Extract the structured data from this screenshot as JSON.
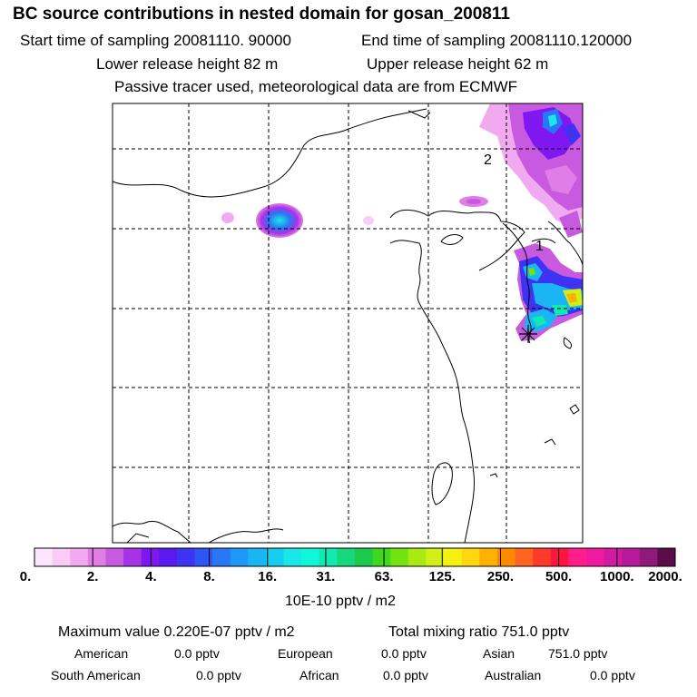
{
  "header": {
    "title": "BC  source contributions in nested domain for gosan_200811",
    "start_label": "Start time of sampling 20081110. 90000",
    "end_label": "End time of sampling 20081110.120000",
    "lower_label": "Lower release height   82 m",
    "upper_label": "Upper release height   62 m",
    "note": "Passive tracer used, meteorological data are from ECMWF"
  },
  "map": {
    "markers": [
      {
        "id": "marker-1",
        "label": "1"
      },
      {
        "id": "marker-2",
        "label": "2"
      }
    ],
    "colors": {
      "land_outline": "#000000",
      "grid_line": "#000000",
      "background": "#ffffff"
    }
  },
  "colorbar": {
    "tick_labels": [
      "0.",
      "2.",
      "4.",
      "8.",
      "16.",
      "31.",
      "63.",
      "125.",
      "250.",
      "500.",
      "1000.",
      "2000."
    ],
    "colors": [
      "#fde6fd",
      "#f9ccf8",
      "#f1aaf0",
      "#e07de6",
      "#c85ae0",
      "#a733e6",
      "#7f18f0",
      "#5a1aef",
      "#3e33f2",
      "#2f55f4",
      "#2a77f5",
      "#1e97f5",
      "#19b6f3",
      "#16cfee",
      "#1ae8e8",
      "#10f6d8",
      "#10eaae",
      "#16d67e",
      "#1dca4d",
      "#3fd81a",
      "#73e30f",
      "#a8ea12",
      "#d3f016",
      "#f6f010",
      "#ffd710",
      "#ffb000",
      "#ff8a00",
      "#ff6420",
      "#ff3a2a",
      "#ff1540",
      "#ff1e8c",
      "#f01aa0",
      "#d21aa2",
      "#b41a9a",
      "#901a7c",
      "#5c0c48"
    ],
    "unit": "10E-10 pptv / m2"
  },
  "stats": {
    "maximum": "Maximum value  0.220E-07 pptv / m2",
    "total": "Total mixing ratio      751.0 pptv",
    "regions": [
      {
        "name": "American",
        "value": "0.0 pptv"
      },
      {
        "name": "European",
        "value": "0.0 pptv"
      },
      {
        "name": "Asian",
        "value": "751.0 pptv"
      },
      {
        "name": "South American",
        "value": "0.0 pptv"
      },
      {
        "name": "African",
        "value": "0.0 pptv"
      },
      {
        "name": "Australian",
        "value": "0.0 pptv"
      }
    ]
  }
}
